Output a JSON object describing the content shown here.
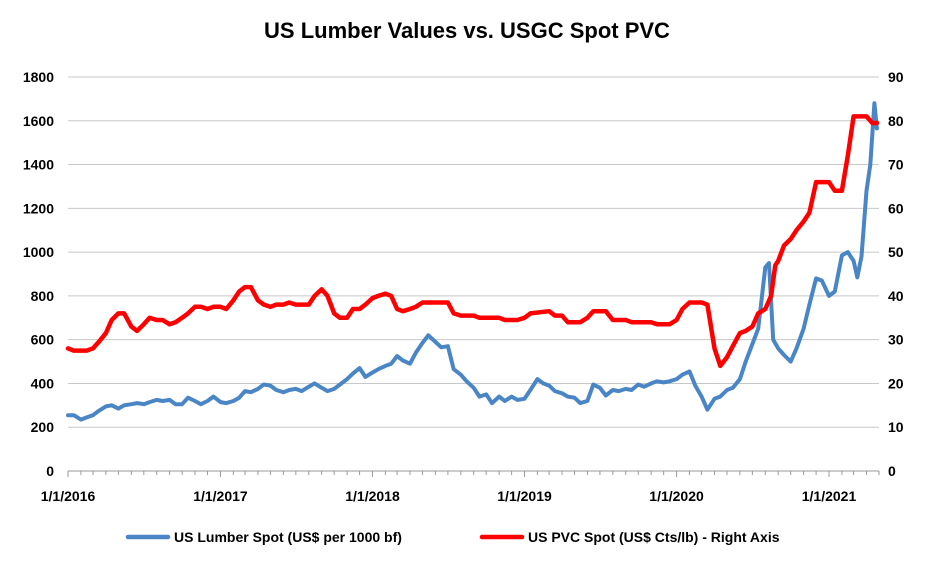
{
  "chart_data": {
    "type": "line",
    "title": "US Lumber Values vs. USGC Spot PVC",
    "x_type": "date",
    "xlim": [
      "2016-01-01",
      "2021-05-01"
    ],
    "x_ticks": [
      "1/1/2016",
      "1/1/2017",
      "1/1/2018",
      "1/1/2019",
      "1/1/2020",
      "1/1/2021"
    ],
    "x_tick_dates": [
      "2016-01-01",
      "2017-01-01",
      "2018-01-01",
      "2019-01-01",
      "2020-01-01",
      "2021-01-01"
    ],
    "y_left": {
      "lim": [
        0,
        1800
      ],
      "ticks": [
        "0",
        "200",
        "400",
        "600",
        "800",
        "1000",
        "1200",
        "1400",
        "1600",
        "1800"
      ]
    },
    "y_right": {
      "lim": [
        0,
        90
      ],
      "ticks": [
        "0",
        "10",
        "20",
        "30",
        "40",
        "50",
        "60",
        "70",
        "80",
        "90"
      ]
    },
    "grid": true,
    "legend_position": "bottom",
    "series": [
      {
        "name": "US Lumber Spot (US$ per 1000 bf)",
        "axis": "left",
        "color": "#4a86c5",
        "points": [
          [
            "2016-01-01",
            255
          ],
          [
            "2016-01-15",
            255
          ],
          [
            "2016-02-01",
            235
          ],
          [
            "2016-02-15",
            245
          ],
          [
            "2016-03-01",
            255
          ],
          [
            "2016-03-15",
            275
          ],
          [
            "2016-04-01",
            295
          ],
          [
            "2016-04-15",
            300
          ],
          [
            "2016-05-01",
            285
          ],
          [
            "2016-05-15",
            300
          ],
          [
            "2016-06-01",
            305
          ],
          [
            "2016-06-15",
            310
          ],
          [
            "2016-07-01",
            305
          ],
          [
            "2016-07-15",
            315
          ],
          [
            "2016-08-01",
            325
          ],
          [
            "2016-08-15",
            320
          ],
          [
            "2016-09-01",
            325
          ],
          [
            "2016-09-15",
            305
          ],
          [
            "2016-10-01",
            305
          ],
          [
            "2016-10-15",
            335
          ],
          [
            "2016-11-01",
            320
          ],
          [
            "2016-11-15",
            305
          ],
          [
            "2016-12-01",
            320
          ],
          [
            "2016-12-15",
            340
          ],
          [
            "2017-01-01",
            315
          ],
          [
            "2017-01-15",
            310
          ],
          [
            "2017-02-01",
            320
          ],
          [
            "2017-02-15",
            335
          ],
          [
            "2017-03-01",
            365
          ],
          [
            "2017-03-15",
            360
          ],
          [
            "2017-04-01",
            375
          ],
          [
            "2017-04-15",
            395
          ],
          [
            "2017-05-01",
            390
          ],
          [
            "2017-05-15",
            370
          ],
          [
            "2017-06-01",
            360
          ],
          [
            "2017-06-15",
            370
          ],
          [
            "2017-07-01",
            375
          ],
          [
            "2017-07-15",
            365
          ],
          [
            "2017-08-01",
            385
          ],
          [
            "2017-08-15",
            400
          ],
          [
            "2017-09-01",
            380
          ],
          [
            "2017-09-15",
            365
          ],
          [
            "2017-10-01",
            375
          ],
          [
            "2017-10-15",
            395
          ],
          [
            "2017-11-01",
            420
          ],
          [
            "2017-11-15",
            445
          ],
          [
            "2017-12-01",
            470
          ],
          [
            "2017-12-15",
            430
          ],
          [
            "2018-01-01",
            450
          ],
          [
            "2018-01-15",
            465
          ],
          [
            "2018-02-01",
            480
          ],
          [
            "2018-02-15",
            490
          ],
          [
            "2018-03-01",
            525
          ],
          [
            "2018-03-15",
            505
          ],
          [
            "2018-04-01",
            490
          ],
          [
            "2018-04-15",
            540
          ],
          [
            "2018-05-01",
            585
          ],
          [
            "2018-05-15",
            620
          ],
          [
            "2018-06-01",
            590
          ],
          [
            "2018-06-15",
            565
          ],
          [
            "2018-07-01",
            570
          ],
          [
            "2018-07-15",
            465
          ],
          [
            "2018-08-01",
            440
          ],
          [
            "2018-08-15",
            410
          ],
          [
            "2018-09-01",
            380
          ],
          [
            "2018-09-15",
            340
          ],
          [
            "2018-10-01",
            350
          ],
          [
            "2018-10-15",
            310
          ],
          [
            "2018-11-01",
            340
          ],
          [
            "2018-11-15",
            320
          ],
          [
            "2018-12-01",
            340
          ],
          [
            "2018-12-15",
            325
          ],
          [
            "2019-01-01",
            330
          ],
          [
            "2019-01-15",
            370
          ],
          [
            "2019-02-01",
            420
          ],
          [
            "2019-02-15",
            400
          ],
          [
            "2019-03-01",
            390
          ],
          [
            "2019-03-15",
            365
          ],
          [
            "2019-04-01",
            355
          ],
          [
            "2019-04-15",
            340
          ],
          [
            "2019-05-01",
            335
          ],
          [
            "2019-05-15",
            310
          ],
          [
            "2019-06-01",
            320
          ],
          [
            "2019-06-15",
            395
          ],
          [
            "2019-07-01",
            380
          ],
          [
            "2019-07-15",
            345
          ],
          [
            "2019-08-01",
            370
          ],
          [
            "2019-08-15",
            365
          ],
          [
            "2019-09-01",
            375
          ],
          [
            "2019-09-15",
            370
          ],
          [
            "2019-10-01",
            395
          ],
          [
            "2019-10-15",
            385
          ],
          [
            "2019-11-01",
            400
          ],
          [
            "2019-11-15",
            410
          ],
          [
            "2019-12-01",
            405
          ],
          [
            "2019-12-15",
            410
          ],
          [
            "2020-01-01",
            420
          ],
          [
            "2020-01-15",
            440
          ],
          [
            "2020-02-01",
            455
          ],
          [
            "2020-02-15",
            390
          ],
          [
            "2020-03-01",
            340
          ],
          [
            "2020-03-15",
            280
          ],
          [
            "2020-04-01",
            330
          ],
          [
            "2020-04-15",
            340
          ],
          [
            "2020-05-01",
            370
          ],
          [
            "2020-05-15",
            380
          ],
          [
            "2020-06-01",
            420
          ],
          [
            "2020-06-15",
            500
          ],
          [
            "2020-07-01",
            580
          ],
          [
            "2020-07-15",
            650
          ],
          [
            "2020-08-01",
            930
          ],
          [
            "2020-08-10",
            950
          ],
          [
            "2020-08-20",
            600
          ],
          [
            "2020-09-01",
            560
          ],
          [
            "2020-09-15",
            530
          ],
          [
            "2020-10-01",
            500
          ],
          [
            "2020-10-15",
            560
          ],
          [
            "2020-11-01",
            650
          ],
          [
            "2020-11-15",
            760
          ],
          [
            "2020-12-01",
            880
          ],
          [
            "2020-12-15",
            870
          ],
          [
            "2021-01-01",
            800
          ],
          [
            "2021-01-15",
            820
          ],
          [
            "2021-02-01",
            985
          ],
          [
            "2021-02-15",
            1000
          ],
          [
            "2021-03-01",
            960
          ],
          [
            "2021-03-10",
            885
          ],
          [
            "2021-03-20",
            980
          ],
          [
            "2021-04-01",
            1280
          ],
          [
            "2021-04-10",
            1400
          ],
          [
            "2021-04-20",
            1680
          ],
          [
            "2021-04-26",
            1565
          ]
        ]
      },
      {
        "name": "US PVC Spot (US$ Cts/lb) - Right Axis",
        "axis": "right",
        "color": "#ff0000",
        "points": [
          [
            "2016-01-01",
            28
          ],
          [
            "2016-01-15",
            27.5
          ],
          [
            "2016-02-15",
            27.5
          ],
          [
            "2016-03-01",
            28
          ],
          [
            "2016-03-15",
            29.5
          ],
          [
            "2016-04-01",
            31.5
          ],
          [
            "2016-04-15",
            34.5
          ],
          [
            "2016-05-01",
            36
          ],
          [
            "2016-05-15",
            36
          ],
          [
            "2016-06-01",
            33
          ],
          [
            "2016-06-15",
            32
          ],
          [
            "2016-07-01",
            33.5
          ],
          [
            "2016-07-15",
            35
          ],
          [
            "2016-08-01",
            34.5
          ],
          [
            "2016-08-15",
            34.5
          ],
          [
            "2016-09-01",
            33.5
          ],
          [
            "2016-09-15",
            34
          ],
          [
            "2016-10-01",
            35
          ],
          [
            "2016-10-15",
            36
          ],
          [
            "2016-11-01",
            37.5
          ],
          [
            "2016-11-15",
            37.5
          ],
          [
            "2016-12-01",
            37
          ],
          [
            "2016-12-15",
            37.5
          ],
          [
            "2017-01-01",
            37.5
          ],
          [
            "2017-01-15",
            37
          ],
          [
            "2017-02-01",
            39
          ],
          [
            "2017-02-15",
            41
          ],
          [
            "2017-03-01",
            42
          ],
          [
            "2017-03-15",
            42
          ],
          [
            "2017-04-01",
            39
          ],
          [
            "2017-04-15",
            38
          ],
          [
            "2017-05-01",
            37.5
          ],
          [
            "2017-05-15",
            38
          ],
          [
            "2017-06-01",
            38
          ],
          [
            "2017-06-15",
            38.5
          ],
          [
            "2017-07-01",
            38
          ],
          [
            "2017-07-15",
            38
          ],
          [
            "2017-08-01",
            38
          ],
          [
            "2017-08-15",
            40
          ],
          [
            "2017-09-01",
            41.5
          ],
          [
            "2017-09-15",
            40
          ],
          [
            "2017-10-01",
            36
          ],
          [
            "2017-10-15",
            35
          ],
          [
            "2017-11-01",
            35
          ],
          [
            "2017-11-15",
            37
          ],
          [
            "2017-12-01",
            37
          ],
          [
            "2017-12-15",
            38
          ],
          [
            "2018-01-01",
            39.5
          ],
          [
            "2018-01-15",
            40
          ],
          [
            "2018-02-01",
            40.5
          ],
          [
            "2018-02-15",
            40
          ],
          [
            "2018-03-01",
            37
          ],
          [
            "2018-03-15",
            36.5
          ],
          [
            "2018-04-01",
            37
          ],
          [
            "2018-04-15",
            37.5
          ],
          [
            "2018-05-01",
            38.5
          ],
          [
            "2018-05-15",
            38.5
          ],
          [
            "2018-07-01",
            38.5
          ],
          [
            "2018-07-15",
            36
          ],
          [
            "2018-08-01",
            35.5
          ],
          [
            "2018-09-01",
            35.5
          ],
          [
            "2018-09-15",
            35
          ],
          [
            "2018-11-01",
            35
          ],
          [
            "2018-11-15",
            34.5
          ],
          [
            "2018-12-15",
            34.5
          ],
          [
            "2019-01-01",
            35
          ],
          [
            "2019-01-15",
            36
          ],
          [
            "2019-03-01",
            36.5
          ],
          [
            "2019-03-15",
            35.5
          ],
          [
            "2019-04-01",
            35.5
          ],
          [
            "2019-04-15",
            34
          ],
          [
            "2019-05-15",
            34
          ],
          [
            "2019-06-01",
            35
          ],
          [
            "2019-06-15",
            36.5
          ],
          [
            "2019-07-15",
            36.5
          ],
          [
            "2019-08-01",
            34.5
          ],
          [
            "2019-09-01",
            34.5
          ],
          [
            "2019-09-15",
            34
          ],
          [
            "2019-11-01",
            34
          ],
          [
            "2019-11-15",
            33.5
          ],
          [
            "2019-12-15",
            33.5
          ],
          [
            "2020-01-01",
            34.5
          ],
          [
            "2020-01-15",
            37
          ],
          [
            "2020-02-01",
            38.5
          ],
          [
            "2020-03-01",
            38.5
          ],
          [
            "2020-03-15",
            38
          ],
          [
            "2020-04-01",
            28
          ],
          [
            "2020-04-15",
            24
          ],
          [
            "2020-05-01",
            26
          ],
          [
            "2020-05-15",
            28.5
          ],
          [
            "2020-06-01",
            31.5
          ],
          [
            "2020-06-15",
            32
          ],
          [
            "2020-07-01",
            33
          ],
          [
            "2020-07-15",
            36
          ],
          [
            "2020-08-01",
            37
          ],
          [
            "2020-08-15",
            40
          ],
          [
            "2020-08-25",
            47
          ],
          [
            "2020-09-01",
            48
          ],
          [
            "2020-09-15",
            51.5
          ],
          [
            "2020-10-01",
            53
          ],
          [
            "2020-10-15",
            55
          ],
          [
            "2020-11-01",
            57
          ],
          [
            "2020-11-15",
            59
          ],
          [
            "2020-12-01",
            66
          ],
          [
            "2020-12-15",
            66
          ],
          [
            "2021-01-01",
            66
          ],
          [
            "2021-01-15",
            64
          ],
          [
            "2021-02-01",
            64
          ],
          [
            "2021-02-15",
            72
          ],
          [
            "2021-03-01",
            81
          ],
          [
            "2021-03-15",
            81
          ],
          [
            "2021-04-01",
            81
          ],
          [
            "2021-04-15",
            79.5
          ],
          [
            "2021-04-26",
            79.5
          ]
        ]
      }
    ]
  }
}
